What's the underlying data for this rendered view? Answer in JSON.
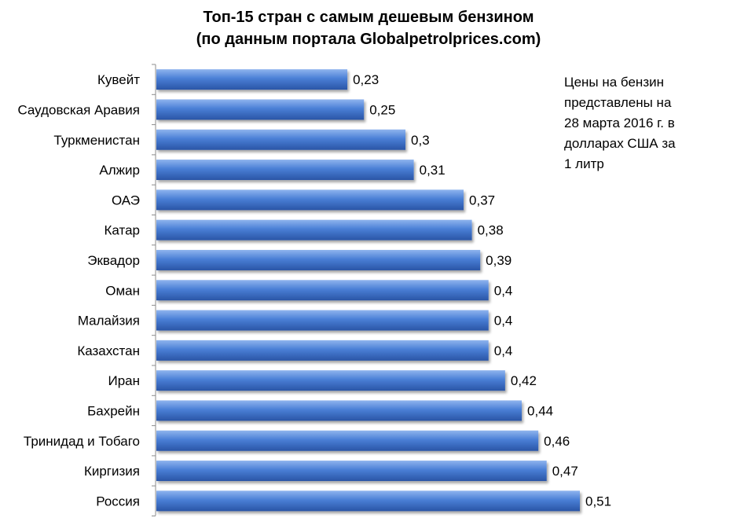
{
  "chart_data": {
    "type": "bar",
    "orientation": "horizontal",
    "title": "Топ-15 стран с самым дешевым бензином",
    "subtitle": "(по данным портала Globalpetrolprices.com)",
    "categories": [
      "Кувейт",
      "Саудовская Аравия",
      "Туркменистан",
      "Алжир",
      "ОАЭ",
      "Катар",
      "Эквадор",
      "Оман",
      "Малайзия",
      "Казахстан",
      "Иран",
      "Бахрейн",
      "Тринидад и Тобаго",
      "Киргизия",
      "Россия"
    ],
    "values": [
      0.23,
      0.25,
      0.3,
      0.31,
      0.37,
      0.38,
      0.39,
      0.4,
      0.4,
      0.4,
      0.42,
      0.44,
      0.46,
      0.47,
      0.51
    ],
    "value_labels": [
      "0,23",
      "0,25",
      "0,3",
      "0,31",
      "0,37",
      "0,38",
      "0,39",
      "0,4",
      "0,4",
      "0,4",
      "0,42",
      "0,44",
      "0,46",
      "0,47",
      "0,51"
    ],
    "xlim": [
      0,
      0.51
    ],
    "bar_color": "#4a7fd6",
    "grid": false,
    "data_labels": true
  },
  "annotation": {
    "lines": [
      "Цены на бензин",
      "представлены на",
      "28 марта  2016 г. в",
      "долларах США за",
      "1 литр"
    ]
  }
}
